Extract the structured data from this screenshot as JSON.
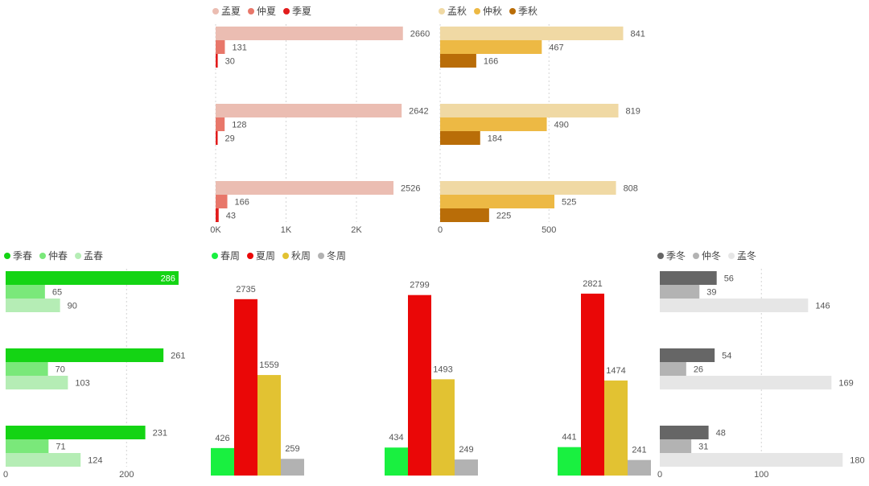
{
  "chart_data": [
    {
      "id": "summary",
      "type": "bar",
      "orientation": "horizontal",
      "categories": [
        "",
        "",
        ""
      ],
      "series": [
        {
          "name": "孟夏",
          "color": "#ebbdb2",
          "values": [
            2660,
            2642,
            2526
          ]
        },
        {
          "name": "仲夏",
          "color": "#e8776a",
          "values": [
            131,
            128,
            166
          ]
        },
        {
          "name": "季夏",
          "color": "#e21c1c",
          "values": [
            30,
            29,
            43
          ]
        }
      ],
      "xlim": [
        0,
        3000
      ],
      "xticks": [
        {
          "value": 0,
          "label": "0K"
        },
        {
          "value": 1000,
          "label": "1K"
        },
        {
          "value": 2000,
          "label": "2K"
        }
      ],
      "grid": true,
      "legend": "top-left"
    },
    {
      "id": "autumn",
      "type": "bar",
      "orientation": "horizontal",
      "categories": [
        "",
        "",
        ""
      ],
      "series": [
        {
          "name": "孟秋",
          "color": "#f0d9a4",
          "values": [
            841,
            819,
            808
          ]
        },
        {
          "name": "仲秋",
          "color": "#edb944",
          "values": [
            467,
            490,
            525
          ]
        },
        {
          "name": "季秋",
          "color": "#b96d08",
          "values": [
            166,
            184,
            225
          ]
        }
      ],
      "xlim": [
        0,
        1000
      ],
      "xticks": [
        {
          "value": 0,
          "label": "0"
        },
        {
          "value": 500,
          "label": "500"
        }
      ],
      "grid": true,
      "legend": "top-left"
    },
    {
      "id": "spring",
      "type": "bar",
      "orientation": "horizontal",
      "categories": [
        "",
        "",
        ""
      ],
      "series": [
        {
          "name": "季春",
          "color": "#14d414",
          "values": [
            286,
            261,
            231
          ]
        },
        {
          "name": "仲春",
          "color": "#7ae87a",
          "values": [
            65,
            70,
            71
          ]
        },
        {
          "name": "孟春",
          "color": "#b5edb5",
          "values": [
            90,
            103,
            124
          ]
        }
      ],
      "xlim": [
        0,
        300
      ],
      "xticks": [
        {
          "value": 0,
          "label": "0"
        },
        {
          "value": 200,
          "label": "200"
        }
      ],
      "grid": true,
      "legend": "top-left"
    },
    {
      "id": "weeks",
      "type": "bar",
      "orientation": "vertical",
      "categories": [
        "",
        "",
        ""
      ],
      "series": [
        {
          "name": "春周",
          "color": "#19f040",
          "values": [
            426,
            434,
            441
          ]
        },
        {
          "name": "夏周",
          "color": "#ea0707",
          "values": [
            2735,
            2799,
            2821
          ]
        },
        {
          "name": "秋周",
          "color": "#e2c232",
          "values": [
            1559,
            1493,
            1474
          ]
        },
        {
          "name": "冬周",
          "color": "#b2b2b2",
          "values": [
            259,
            249,
            241
          ]
        }
      ],
      "ylim": [
        0,
        3000
      ],
      "grid": false,
      "legend": "top-left"
    },
    {
      "id": "winter",
      "type": "bar",
      "orientation": "horizontal",
      "categories": [
        "",
        "",
        ""
      ],
      "series": [
        {
          "name": "季冬",
          "color": "#666666",
          "values": [
            56,
            54,
            48
          ]
        },
        {
          "name": "仲冬",
          "color": "#b3b3b3",
          "values": [
            39,
            26,
            31
          ]
        },
        {
          "name": "孟冬",
          "color": "#e6e6e6",
          "values": [
            146,
            169,
            180
          ]
        }
      ],
      "xlim": [
        0,
        200
      ],
      "xticks": [
        {
          "value": 0,
          "label": "0"
        },
        {
          "value": 100,
          "label": "100"
        }
      ],
      "grid": true,
      "legend": "top-left"
    }
  ]
}
